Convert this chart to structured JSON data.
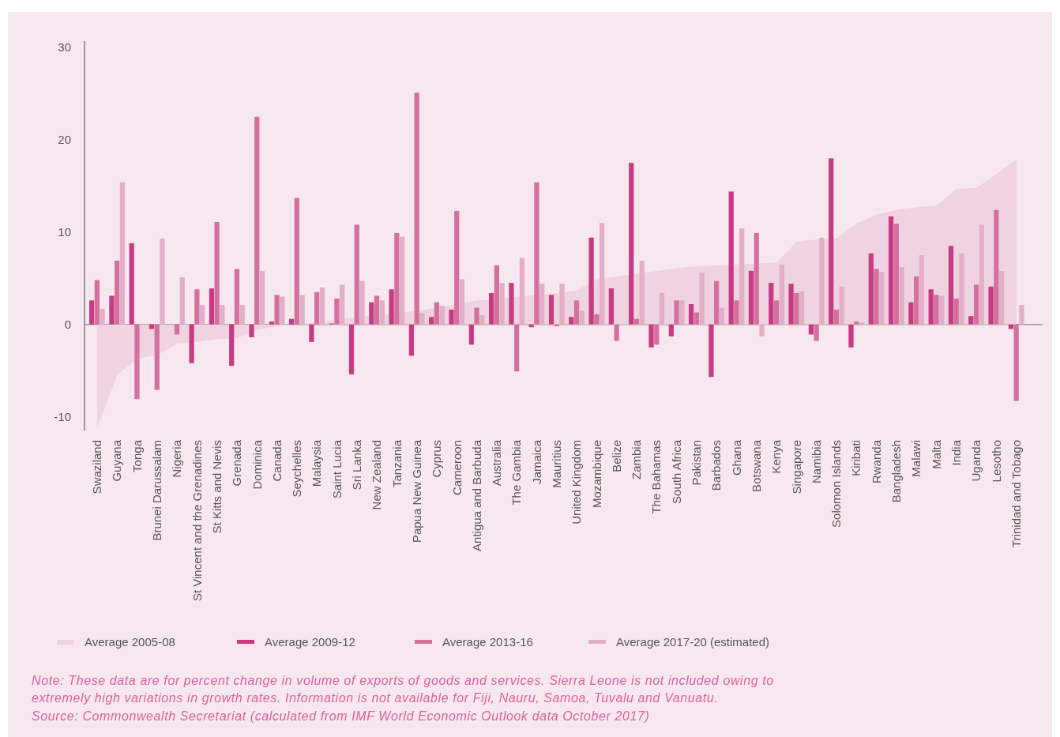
{
  "chart_data": {
    "type": "bar",
    "categories": [
      "Swaziland",
      "Guyana",
      "Tonga",
      "Brunei Darussalam",
      "Nigeria",
      "St Vincent and the Grenadines",
      "St Kitts and Nevis",
      "Grenada",
      "Dominica",
      "Canada",
      "Seychelles",
      "Malaysia",
      "Saint Lucia",
      "Sri Lanka",
      "New Zealand",
      "Tanzania",
      "Papua New Guinea",
      "Cyprus",
      "Cameroon",
      "Antigua and Barbuda",
      "Australia",
      "The Gambia",
      "Jamaica",
      "Mauritius",
      "United Kingdom",
      "Mozambique",
      "Belize",
      "Zambia",
      "The Bahamas",
      "South Africa",
      "Pakistan",
      "Barbados",
      "Ghana",
      "Botswana",
      "Kenya",
      "Singapore",
      "Namibia",
      "Solomon Islands",
      "Kiribati",
      "Rwanda",
      "Bangladesh",
      "Malawi",
      "Malta",
      "India",
      "Uganda",
      "Lesotho",
      "Trinidad and Tobago"
    ],
    "series": [
      {
        "name": "Average 2005-08",
        "type": "area",
        "color": "#f0d3e0",
        "values": [
          -11.2,
          -5.5,
          -3.7,
          -3.3,
          -2.1,
          -1.9,
          -1.6,
          -1.5,
          -0.6,
          -0.2,
          0,
          0.2,
          0.5,
          0.8,
          1.0,
          1.2,
          1.5,
          1.8,
          2.2,
          2.6,
          2.7,
          3.0,
          3.2,
          3.4,
          3.7,
          4.9,
          5.2,
          5.5,
          5.8,
          6.1,
          6.3,
          6.4,
          6.5,
          6.6,
          6.7,
          9.0,
          9.2,
          9.3,
          10.9,
          11.9,
          12.4,
          12.7,
          12.9,
          14.7,
          14.8,
          16.3,
          17.9
        ]
      },
      {
        "name": "Average 2009-12",
        "color": "#c93a85",
        "values": [
          2.6,
          3.1,
          8.8,
          -0.5,
          null,
          -4.2,
          3.9,
          -4.5,
          -1.4,
          0.3,
          0.6,
          -1.9,
          0.1,
          -5.4,
          2.4,
          3.8,
          -3.4,
          0.8,
          1.6,
          -2.2,
          3.4,
          4.5,
          -0.3,
          3.2,
          0.8,
          9.4,
          3.9,
          17.5,
          -2.5,
          -1.3,
          2.2,
          -5.7,
          14.4,
          5.8,
          4.5,
          4.4,
          -1.1,
          18.0,
          -2.5,
          7.7,
          11.7,
          2.4,
          3.8,
          8.5,
          0.9,
          4.1,
          -0.5
        ]
      },
      {
        "name": "Average 2013-16",
        "color": "#d4709e",
        "values": [
          4.8,
          6.9,
          -8.1,
          -7.1,
          -1.1,
          3.8,
          11.1,
          6.0,
          22.5,
          3.2,
          13.7,
          3.5,
          2.8,
          10.8,
          3.1,
          9.9,
          25.1,
          2.4,
          12.3,
          1.8,
          6.4,
          -5.1,
          15.4,
          -0.2,
          2.6,
          1.1,
          -1.8,
          0.6,
          -2.2,
          2.6,
          1.3,
          4.7,
          2.6,
          9.9,
          2.6,
          3.4,
          -1.8,
          1.6,
          0.3,
          6.0,
          10.9,
          5.2,
          3.2,
          2.8,
          4.3,
          12.4,
          -8.3
        ]
      },
      {
        "name": "Average 2017-20 (estimated)",
        "color": "#e3afc8",
        "values": [
          1.7,
          15.4,
          null,
          9.3,
          5.1,
          2.1,
          2.1,
          2.1,
          5.8,
          3.0,
          3.2,
          4.0,
          4.3,
          4.7,
          2.6,
          9.5,
          1.2,
          2.0,
          4.9,
          1.0,
          4.5,
          7.2,
          4.4,
          4.4,
          1.5,
          11.0,
          null,
          6.9,
          3.4,
          2.6,
          5.6,
          1.8,
          10.4,
          -1.3,
          6.5,
          3.6,
          9.4,
          4.1,
          0.2,
          5.7,
          6.2,
          7.5,
          3.1,
          7.7,
          10.8,
          5.8,
          2.1
        ]
      }
    ],
    "ylim": [
      -11.5,
      30.7
    ],
    "yticks": [
      -10,
      0,
      10,
      20,
      30
    ],
    "legend": "bottom",
    "annotations": [
      "Note: These data are for percent change in volume of exports of goods and services. Sierra Leone is not included owing to extremely high variations in growth rates. Information is not available for Fiji, Nauru, Samoa, Tuvalu and Vanuatu.",
      "Source: Commonwealth Secretariat (calculated from IMF World Economic Outlook data October 2017)"
    ]
  }
}
